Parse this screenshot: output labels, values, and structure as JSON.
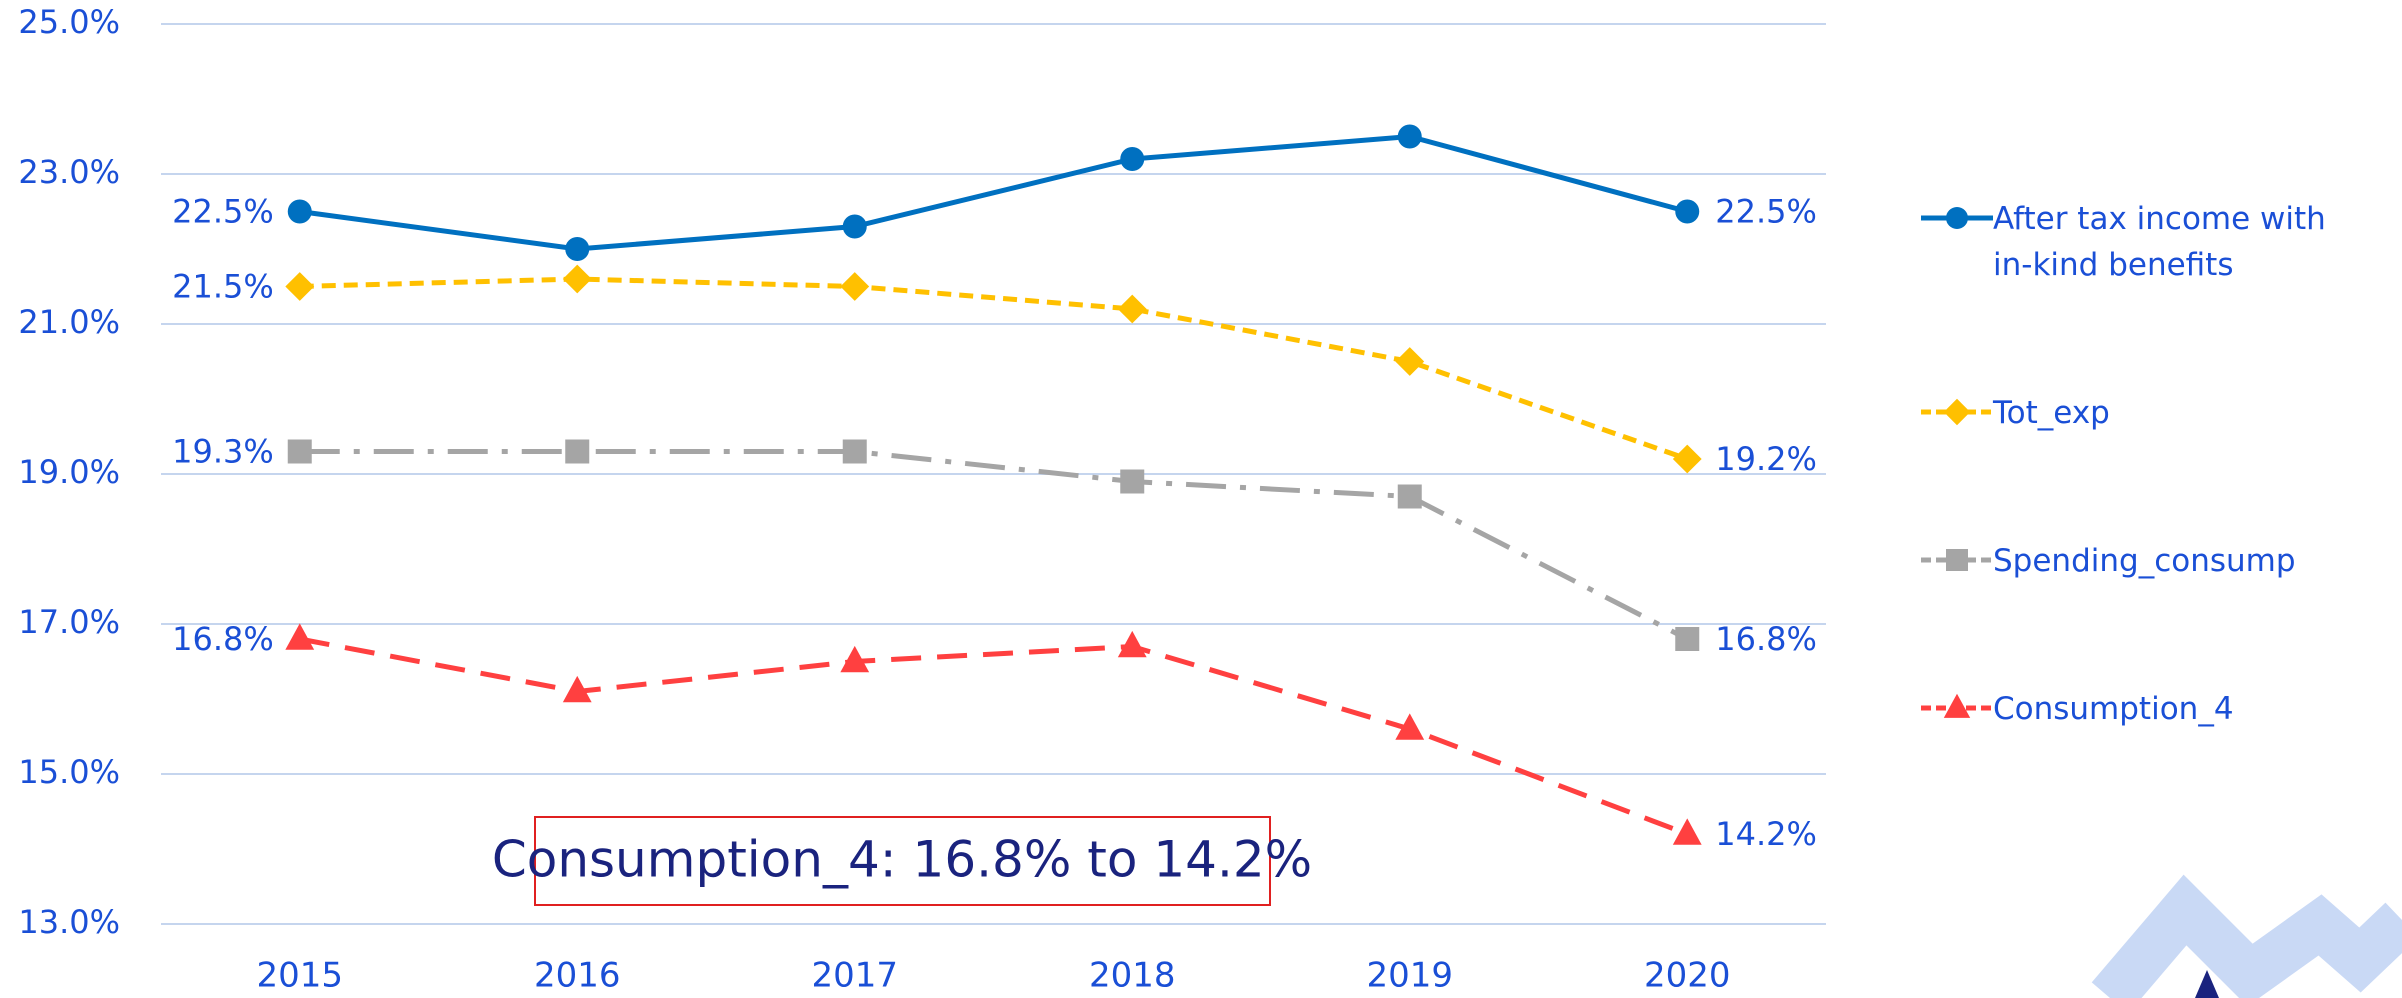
{
  "chart_data": {
    "type": "line",
    "categories": [
      "2015",
      "2016",
      "2017",
      "2018",
      "2019",
      "2020"
    ],
    "series": [
      {
        "name": "After tax income with in-kind benefits",
        "color": "#0070c0",
        "values": [
          22.5,
          22.0,
          22.3,
          23.2,
          23.5,
          22.5
        ],
        "value_labels": [
          "22.5%",
          null,
          null,
          null,
          null,
          "22.5%"
        ]
      },
      {
        "name": "Tot_exp",
        "color": "#ffc000",
        "values": [
          21.5,
          21.6,
          21.5,
          21.2,
          20.5,
          19.2
        ],
        "value_labels": [
          "21.5%",
          null,
          null,
          null,
          null,
          "19.2%"
        ]
      },
      {
        "name": "Spending_consump",
        "color": "#a5a5a5",
        "values": [
          19.3,
          19.3,
          19.3,
          18.9,
          18.7,
          16.8
        ],
        "value_labels": [
          "19.3%",
          null,
          null,
          null,
          null,
          "16.8%"
        ]
      },
      {
        "name": "Consumption_4",
        "color": "#ff4040",
        "values": [
          16.8,
          16.1,
          16.5,
          16.7,
          15.6,
          14.2
        ],
        "value_labels": [
          "16.8%",
          null,
          null,
          null,
          null,
          "14.2%"
        ]
      }
    ],
    "ylim": [
      13,
      25
    ],
    "yticks": [
      {
        "value": 13,
        "label": "13.0%"
      },
      {
        "value": 15,
        "label": "15.0%"
      },
      {
        "value": 17,
        "label": "17.0%"
      },
      {
        "value": 19,
        "label": "19.0%"
      },
      {
        "value": 21,
        "label": "21.0%"
      },
      {
        "value": 23,
        "label": "23.0%"
      },
      {
        "value": 25,
        "label": "25.0%"
      }
    ],
    "grid": true,
    "legend": "right",
    "annotation": "Consumption_4: 16.8% to 14.2%"
  }
}
